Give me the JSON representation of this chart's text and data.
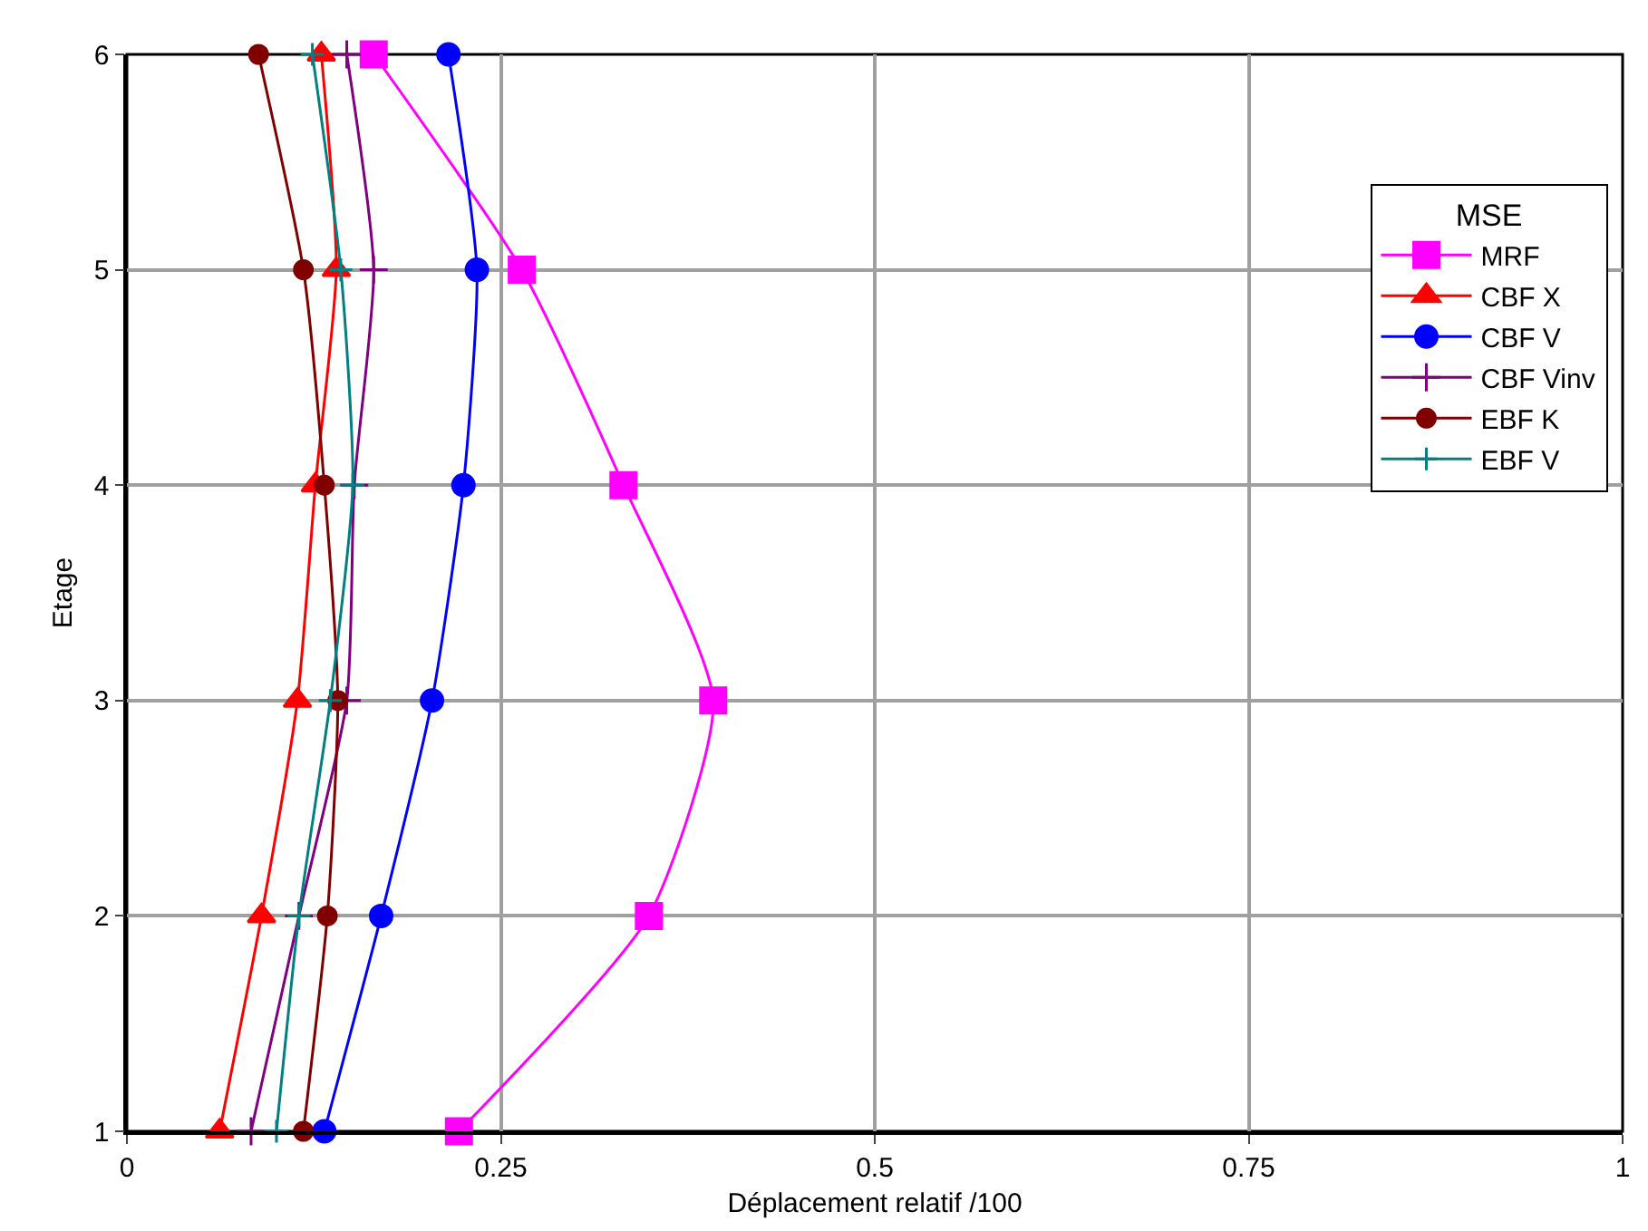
{
  "chart_data": {
    "type": "line",
    "xlabel": "Déplacement relatif /100",
    "ylabel": "Etage",
    "legend_title": "MSE",
    "legend": "top right",
    "grid": true,
    "line_style": "solid",
    "xlim": [
      0,
      1
    ],
    "xticks": [
      0,
      0.25,
      0.5,
      0.75,
      1
    ],
    "ylim": [
      1,
      6
    ],
    "yticks": [
      1,
      2,
      3,
      4,
      5,
      6
    ],
    "series": [
      {
        "name": "MRF",
        "color": "#ff00ff",
        "marker": "square",
        "x": [
          0.222,
          0.349,
          0.392,
          0.332,
          0.264,
          0.165
        ],
        "values": [
          1,
          2,
          3,
          4,
          5,
          6
        ]
      },
      {
        "name": "CBF X",
        "color": "#ff0000",
        "marker": "triangle",
        "x": [
          0.062,
          0.09,
          0.114,
          0.126,
          0.14,
          0.13
        ],
        "values": [
          1,
          2,
          3,
          4,
          5,
          6
        ]
      },
      {
        "name": "CBF V",
        "color": "#0000ff",
        "marker": "circle",
        "x": [
          0.132,
          0.17,
          0.204,
          0.225,
          0.234,
          0.215
        ],
        "values": [
          1,
          2,
          3,
          4,
          5,
          6
        ]
      },
      {
        "name": "CBF Vinv",
        "color": "#800080",
        "marker": "cross",
        "x": [
          0.083,
          0.115,
          0.147,
          0.152,
          0.165,
          0.147
        ],
        "values": [
          1,
          2,
          3,
          4,
          5,
          6
        ]
      },
      {
        "name": "EBF K",
        "color": "#800000",
        "marker": "circle",
        "x": [
          0.118,
          0.134,
          0.141,
          0.132,
          0.118,
          0.088
        ],
        "values": [
          1,
          2,
          3,
          4,
          5,
          6
        ]
      },
      {
        "name": "EBF V",
        "color": "#008080",
        "marker": "cross",
        "x": [
          0.1,
          0.115,
          0.136,
          0.151,
          0.143,
          0.124
        ],
        "values": [
          1,
          2,
          3,
          4,
          5,
          6
        ]
      }
    ]
  }
}
